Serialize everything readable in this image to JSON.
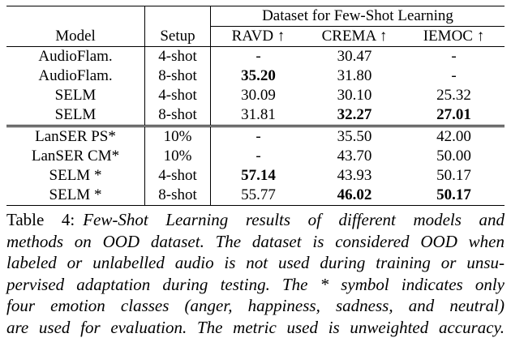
{
  "table": {
    "group_header": "Dataset for Few-Shot Learning",
    "columns": [
      "Model",
      "Setup",
      "RAVD ↑",
      "CREMA ↑",
      "IEMOC ↑"
    ],
    "rows": [
      {
        "cells": [
          "AudioFlam.",
          "4-shot",
          "-",
          "30.47",
          "-"
        ],
        "bold": []
      },
      {
        "cells": [
          "AudioFlam.",
          "8-shot",
          "35.20",
          "31.80",
          "-"
        ],
        "bold": [
          2
        ]
      },
      {
        "cells": [
          "SELM",
          "4-shot",
          "30.09",
          "30.10",
          "25.32"
        ],
        "bold": []
      },
      {
        "cells": [
          "SELM",
          "8-shot",
          "31.81",
          "32.27",
          "27.01"
        ],
        "bold": [
          3,
          4
        ]
      },
      {
        "cells": [
          "LanSER PS*",
          "10%",
          "-",
          "35.50",
          "42.00"
        ],
        "bold": []
      },
      {
        "cells": [
          "LanSER CM*",
          "10%",
          "-",
          "43.70",
          "50.00"
        ],
        "bold": []
      },
      {
        "cells": [
          "SELM *",
          "4-shot",
          "57.14",
          "43.93",
          "50.17"
        ],
        "bold": [
          2
        ]
      },
      {
        "cells": [
          "SELM *",
          "8-shot",
          "55.77",
          "46.02",
          "50.17"
        ],
        "bold": [
          3,
          4
        ]
      }
    ],
    "group_break_after": 3
  },
  "caption": {
    "label": "Table 4:",
    "lines": [
      "Few-Shot Learning results of different models and",
      "methods on OOD dataset. The dataset is considered OOD when",
      "labeled or unlabelled audio is not used during training or unsu-",
      "pervised adaptation during testing. The * symbol indicates only",
      "four emotion classes (anger, happiness, sadness, and neutral)",
      "are used for evaluation. The metric used is unweighted accuracy."
    ]
  }
}
